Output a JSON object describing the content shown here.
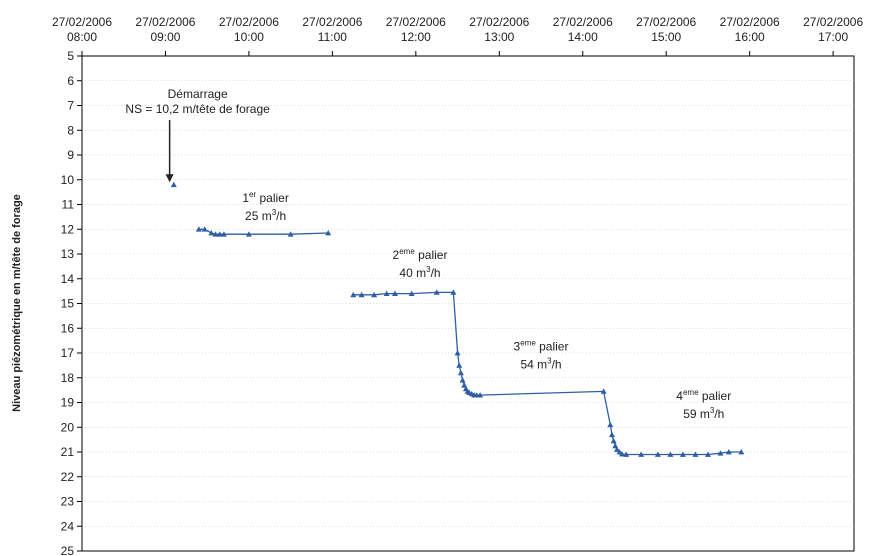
{
  "chart_data": {
    "type": "line",
    "title": "",
    "ylabel": "Niveau piézométrique en m/tête de forage",
    "xlabel": "",
    "x_axis": {
      "position": "top",
      "range_hours": [
        8,
        17.25
      ],
      "ticks": [
        {
          "hour": 8,
          "date": "27/02/2006",
          "time": "08:00"
        },
        {
          "hour": 9,
          "date": "27/02/2006",
          "time": "09:00"
        },
        {
          "hour": 10,
          "date": "27/02/2006",
          "time": "10:00"
        },
        {
          "hour": 11,
          "date": "27/02/2006",
          "time": "11:00"
        },
        {
          "hour": 12,
          "date": "27/02/2006",
          "time": "12:00"
        },
        {
          "hour": 13,
          "date": "27/02/2006",
          "time": "13:00"
        },
        {
          "hour": 14,
          "date": "27/02/2006",
          "time": "14:00"
        },
        {
          "hour": 15,
          "date": "27/02/2006",
          "time": "15:00"
        },
        {
          "hour": 16,
          "date": "27/02/2006",
          "time": "16:00"
        },
        {
          "hour": 17,
          "date": "27/02/2006",
          "time": "17:00"
        }
      ]
    },
    "y_axis": {
      "inverted": true,
      "range": [
        5,
        25
      ],
      "ticks": [
        5,
        6,
        7,
        8,
        9,
        10,
        11,
        12,
        13,
        14,
        15,
        16,
        17,
        18,
        19,
        20,
        21,
        22,
        23,
        24,
        25
      ]
    },
    "grid": {
      "horizontal": true,
      "vertical": false
    },
    "line_color": "#2e5fa3",
    "marker_color": "#2e5fa3",
    "series": [
      {
        "points": [
          {
            "hour": 9.1,
            "y": 10.2
          }
        ]
      },
      {
        "points": [
          {
            "hour": 9.4,
            "y": 12.0
          },
          {
            "hour": 9.47,
            "y": 12.0
          },
          {
            "hour": 9.55,
            "y": 12.15
          },
          {
            "hour": 9.6,
            "y": 12.2
          },
          {
            "hour": 9.65,
            "y": 12.2
          },
          {
            "hour": 9.7,
            "y": 12.2
          },
          {
            "hour": 10.0,
            "y": 12.2
          },
          {
            "hour": 10.5,
            "y": 12.2
          },
          {
            "hour": 10.95,
            "y": 12.15
          }
        ]
      },
      {
        "points": [
          {
            "hour": 11.25,
            "y": 14.65
          },
          {
            "hour": 11.35,
            "y": 14.65
          },
          {
            "hour": 11.5,
            "y": 14.65
          },
          {
            "hour": 11.65,
            "y": 14.6
          },
          {
            "hour": 11.75,
            "y": 14.6
          },
          {
            "hour": 11.95,
            "y": 14.6
          },
          {
            "hour": 12.25,
            "y": 14.55
          },
          {
            "hour": 12.45,
            "y": 14.55
          },
          {
            "hour": 12.5,
            "y": 17.0
          },
          {
            "hour": 12.52,
            "y": 17.5
          },
          {
            "hour": 12.54,
            "y": 17.8
          },
          {
            "hour": 12.56,
            "y": 18.1
          },
          {
            "hour": 12.58,
            "y": 18.3
          },
          {
            "hour": 12.6,
            "y": 18.45
          },
          {
            "hour": 12.62,
            "y": 18.55
          },
          {
            "hour": 12.64,
            "y": 18.6
          },
          {
            "hour": 12.67,
            "y": 18.65
          },
          {
            "hour": 12.7,
            "y": 18.7
          },
          {
            "hour": 12.73,
            "y": 18.7
          },
          {
            "hour": 12.77,
            "y": 18.7
          },
          {
            "hour": 14.25,
            "y": 18.55
          },
          {
            "hour": 14.33,
            "y": 19.9
          },
          {
            "hour": 14.35,
            "y": 20.3
          },
          {
            "hour": 14.37,
            "y": 20.55
          },
          {
            "hour": 14.39,
            "y": 20.75
          },
          {
            "hour": 14.41,
            "y": 20.9
          },
          {
            "hour": 14.44,
            "y": 21.0
          },
          {
            "hour": 14.47,
            "y": 21.08
          },
          {
            "hour": 14.52,
            "y": 21.1
          },
          {
            "hour": 14.7,
            "y": 21.1
          },
          {
            "hour": 14.9,
            "y": 21.1
          },
          {
            "hour": 15.05,
            "y": 21.1
          },
          {
            "hour": 15.2,
            "y": 21.1
          },
          {
            "hour": 15.35,
            "y": 21.1
          },
          {
            "hour": 15.5,
            "y": 21.1
          },
          {
            "hour": 15.65,
            "y": 21.05
          },
          {
            "hour": 15.75,
            "y": 21.0
          },
          {
            "hour": 15.9,
            "y": 21.0
          }
        ]
      }
    ],
    "annotations": [
      {
        "id": "demarrage",
        "lines": [
          "Démarrage",
          "NS = 10,2 m/tête de forage"
        ],
        "hour": 9.05,
        "y": 6.7,
        "arrow_to": {
          "hour": 9.05,
          "y": 10.1
        }
      },
      {
        "id": "palier1",
        "pre": "1",
        "sup": "er",
        "post": " palier",
        "rate": "25 m",
        "rate_sup": "3",
        "rate_post": "/h",
        "hour": 10.2,
        "y": 10.9
      },
      {
        "id": "palier2",
        "pre": "2",
        "sup": "eme",
        "post": " palier",
        "rate": "40 m",
        "rate_sup": "3",
        "rate_post": "/h",
        "hour": 12.05,
        "y": 13.2
      },
      {
        "id": "palier3",
        "pre": "3",
        "sup": "eme",
        "post": " palier",
        "rate": "54 m",
        "rate_sup": "3",
        "rate_post": "/h",
        "hour": 13.5,
        "y": 16.9
      },
      {
        "id": "palier4",
        "pre": "4",
        "sup": "eme",
        "post": " palier",
        "rate": "59 m",
        "rate_sup": "3",
        "rate_post": "/h",
        "hour": 15.45,
        "y": 18.9
      }
    ]
  }
}
